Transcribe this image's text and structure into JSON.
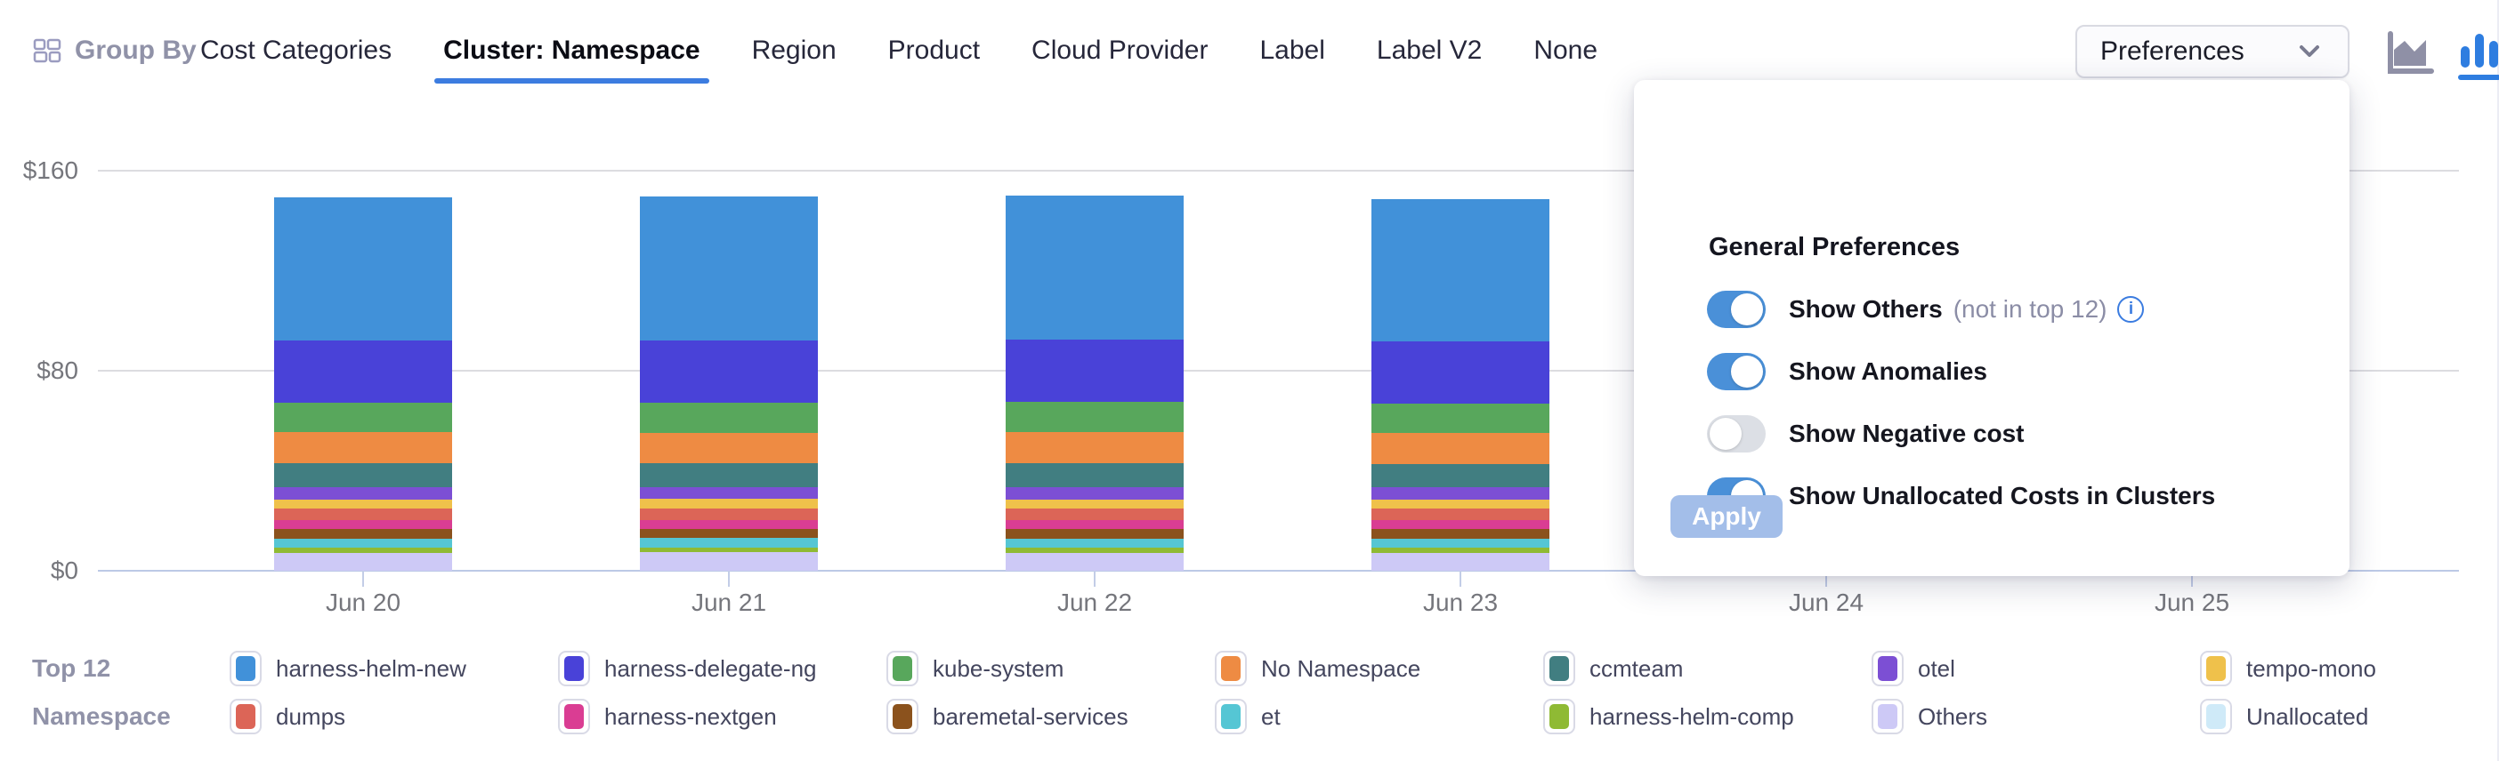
{
  "header": {
    "group_by_label": "Group By",
    "tabs": [
      {
        "label": "Cost Categories",
        "active": false
      },
      {
        "label": "Cluster: Namespace",
        "active": true
      },
      {
        "label": "Region",
        "active": false
      },
      {
        "label": "Product",
        "active": false
      },
      {
        "label": "Cloud Provider",
        "active": false
      },
      {
        "label": "Label",
        "active": false
      },
      {
        "label": "Label V2",
        "active": false
      },
      {
        "label": "None",
        "active": false
      }
    ],
    "preferences": {
      "label": "Preferences"
    },
    "chart_type_icons": [
      {
        "name": "area-chart-icon",
        "active": false
      },
      {
        "name": "bar-chart-icon",
        "active": true
      }
    ],
    "accent_color": "#3c7ce0"
  },
  "preferences_panel": {
    "title": "General Preferences",
    "toggles": [
      {
        "label": "Show Others",
        "suffix": "(not in top 12)",
        "info_icon": true,
        "on": true
      },
      {
        "label": "Show Anomalies",
        "suffix": "",
        "info_icon": false,
        "on": true
      },
      {
        "label": "Show Negative cost",
        "suffix": "",
        "info_icon": false,
        "on": false
      },
      {
        "label": "Show Unallocated Costs in Clusters",
        "suffix": "",
        "info_icon": false,
        "on": true
      }
    ],
    "apply_label": "Apply",
    "toggle_on_color": "#4a90d8",
    "apply_color": "#a3bee9"
  },
  "legend": {
    "title_line1": "Top 12",
    "title_line2": "Namespace",
    "items": [
      {
        "label": "harness-helm-new",
        "color": "#4191d9"
      },
      {
        "label": "harness-delegate-ng",
        "color": "#4942d8"
      },
      {
        "label": "kube-system",
        "color": "#58a75c"
      },
      {
        "label": "No Namespace",
        "color": "#ee8b43"
      },
      {
        "label": "ccmteam",
        "color": "#417e81"
      },
      {
        "label": "otel",
        "color": "#7c4fd4"
      },
      {
        "label": "tempo-mono",
        "color": "#efc14b"
      },
      {
        "label": "dumps",
        "color": "#dc6557"
      },
      {
        "label": "harness-nextgen",
        "color": "#da3d93"
      },
      {
        "label": "baremetal-services",
        "color": "#8b521d"
      },
      {
        "label": "et",
        "color": "#55c6d4"
      },
      {
        "label": "harness-helm-comp",
        "color": "#8fba34"
      },
      {
        "label": "Others",
        "color": "#cdc9f6"
      },
      {
        "label": "Unallocated",
        "color": "#cfeaf8"
      }
    ]
  },
  "chart_data": {
    "type": "bar",
    "stacked": true,
    "categories": [
      "Jun 20",
      "Jun 21",
      "Jun 22",
      "Jun 23",
      "Jun 24",
      "Jun 25"
    ],
    "note": "Jun 24 and Jun 25 bars are obscured by the open Preferences popover; values null",
    "series": [
      {
        "name": "harness-helm-new",
        "color": "#4191d9",
        "values": [
          57.1,
          57.4,
          57.6,
          56.9,
          null,
          null
        ]
      },
      {
        "name": "harness-delegate-ng",
        "color": "#4942d8",
        "values": [
          25.0,
          25.1,
          24.9,
          25.0,
          null,
          null
        ]
      },
      {
        "name": "kube-system",
        "color": "#58a75c",
        "values": [
          11.8,
          12.0,
          11.9,
          11.8,
          null,
          null
        ]
      },
      {
        "name": "No Namespace",
        "color": "#ee8b43",
        "values": [
          12.3,
          12.1,
          12.4,
          12.2,
          null,
          null
        ]
      },
      {
        "name": "ccmteam",
        "color": "#417e81",
        "values": [
          9.5,
          9.4,
          9.5,
          9.4,
          null,
          null
        ]
      },
      {
        "name": "otel",
        "color": "#7c4fd4",
        "values": [
          5.0,
          4.9,
          5.0,
          4.9,
          null,
          null
        ]
      },
      {
        "name": "tempo-mono",
        "color": "#efc14b",
        "values": [
          3.6,
          3.7,
          3.6,
          3.6,
          null,
          null
        ]
      },
      {
        "name": "dumps",
        "color": "#dc6557",
        "values": [
          4.6,
          4.7,
          4.6,
          4.6,
          null,
          null
        ]
      },
      {
        "name": "harness-nextgen",
        "color": "#da3d93",
        "values": [
          3.6,
          3.5,
          3.6,
          3.6,
          null,
          null
        ]
      },
      {
        "name": "baremetal-services",
        "color": "#8b521d",
        "values": [
          3.9,
          3.8,
          3.9,
          3.9,
          null,
          null
        ]
      },
      {
        "name": "et",
        "color": "#55c6d4",
        "values": [
          3.6,
          3.7,
          3.6,
          3.6,
          null,
          null
        ]
      },
      {
        "name": "harness-helm-comp",
        "color": "#8fba34",
        "values": [
          2.1,
          2.0,
          2.1,
          2.1,
          null,
          null
        ]
      },
      {
        "name": "Others",
        "color": "#cdc9f6",
        "values": [
          7.1,
          7.3,
          7.2,
          7.1,
          null,
          null
        ]
      },
      {
        "name": "Unallocated",
        "color": "#cfeaf8",
        "values": [
          0,
          0,
          0,
          0,
          null,
          null
        ]
      }
    ],
    "y_ticks": [
      {
        "label": "$0",
        "value": 0
      },
      {
        "label": "$80",
        "value": 80
      },
      {
        "label": "$160",
        "value": 160
      }
    ],
    "ylim": [
      0,
      160
    ],
    "xlabel": "",
    "ylabel": "",
    "grid": true,
    "legend_position": "bottom"
  }
}
